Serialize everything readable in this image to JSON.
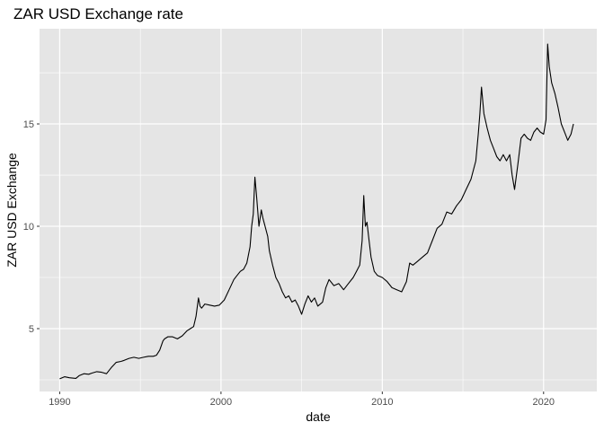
{
  "chart_data": {
    "type": "line",
    "title": "ZAR USD Exchange rate",
    "xlabel": "date",
    "ylabel": "ZAR USD Exchange",
    "xlim": [
      1988.75,
      2023.3
    ],
    "ylim": [
      1.93,
      19.65
    ],
    "x_ticks": [
      {
        "value": 1990,
        "label": "1990"
      },
      {
        "value": 2000,
        "label": "2000"
      },
      {
        "value": 2010,
        "label": "2010"
      },
      {
        "value": 2020,
        "label": "2020"
      }
    ],
    "x_minor_ticks": [
      1995,
      2005,
      2015
    ],
    "y_ticks": [
      {
        "value": 5,
        "label": "5"
      },
      {
        "value": 10,
        "label": "10"
      },
      {
        "value": 15,
        "label": "15"
      }
    ],
    "y_minor_ticks": [
      2.5,
      7.5,
      12.5,
      17.5
    ],
    "grid": true,
    "legend": "none",
    "colors": {
      "panel": "#e5e5e5",
      "grid": "#ffffff",
      "line": "#000000",
      "tick_label": "#4d4d4d"
    },
    "series": [
      {
        "x": [
          1990.0,
          1990.3,
          1990.6,
          1991.0,
          1991.2,
          1991.5,
          1991.8,
          1992.0,
          1992.3,
          1992.6,
          1992.9,
          1993.2,
          1993.5,
          1993.8,
          1994.0,
          1994.3,
          1994.6,
          1994.9,
          1995.2,
          1995.5,
          1995.8,
          1996.0,
          1996.2,
          1996.4,
          1996.5,
          1996.7,
          1997.0,
          1997.3,
          1997.6,
          1997.9,
          1998.1,
          1998.3,
          1998.45,
          1998.6,
          1998.7,
          1998.8,
          1999.0,
          1999.3,
          1999.6,
          1999.9,
          2000.2,
          2000.5,
          2000.8,
          2001.0,
          2001.2,
          2001.4,
          2001.6,
          2001.8,
          2001.9,
          2002.0,
          2002.1,
          2002.2,
          2002.35,
          2002.5,
          2002.6,
          2002.7,
          2002.9,
          2003.0,
          2003.2,
          2003.4,
          2003.6,
          2003.8,
          2004.0,
          2004.2,
          2004.4,
          2004.6,
          2004.8,
          2005.0,
          2005.2,
          2005.4,
          2005.6,
          2005.8,
          2006.0,
          2006.3,
          2006.5,
          2006.7,
          2007.0,
          2007.3,
          2007.6,
          2007.9,
          2008.2,
          2008.4,
          2008.6,
          2008.75,
          2008.85,
          2008.95,
          2009.05,
          2009.15,
          2009.3,
          2009.5,
          2009.7,
          2010.0,
          2010.3,
          2010.6,
          2010.9,
          2011.2,
          2011.5,
          2011.7,
          2011.9,
          2012.2,
          2012.5,
          2012.8,
          2013.1,
          2013.4,
          2013.7,
          2014.0,
          2014.3,
          2014.6,
          2014.9,
          2015.2,
          2015.5,
          2015.8,
          2015.95,
          2016.05,
          2016.15,
          2016.3,
          2016.5,
          2016.7,
          2016.9,
          2017.1,
          2017.3,
          2017.5,
          2017.7,
          2017.9,
          2018.05,
          2018.2,
          2018.4,
          2018.6,
          2018.8,
          2019.0,
          2019.2,
          2019.4,
          2019.6,
          2019.8,
          2020.0,
          2020.15,
          2020.25,
          2020.35,
          2020.5,
          2020.7,
          2020.9,
          2021.1,
          2021.3,
          2021.5,
          2021.7,
          2021.85
        ],
        "values": [
          2.55,
          2.65,
          2.6,
          2.57,
          2.7,
          2.8,
          2.77,
          2.83,
          2.9,
          2.87,
          2.8,
          3.1,
          3.35,
          3.4,
          3.45,
          3.55,
          3.6,
          3.55,
          3.6,
          3.65,
          3.65,
          3.7,
          3.95,
          4.4,
          4.5,
          4.6,
          4.6,
          4.5,
          4.65,
          4.9,
          5.0,
          5.1,
          5.6,
          6.5,
          6.1,
          6.0,
          6.2,
          6.15,
          6.1,
          6.15,
          6.4,
          6.9,
          7.4,
          7.6,
          7.8,
          7.9,
          8.2,
          9.0,
          10.0,
          10.6,
          12.4,
          11.5,
          10.0,
          10.8,
          10.4,
          10.1,
          9.5,
          8.8,
          8.1,
          7.5,
          7.2,
          6.8,
          6.5,
          6.6,
          6.3,
          6.4,
          6.1,
          5.7,
          6.2,
          6.6,
          6.3,
          6.5,
          6.1,
          6.3,
          7.0,
          7.4,
          7.1,
          7.2,
          6.9,
          7.2,
          7.5,
          7.8,
          8.1,
          9.3,
          11.5,
          10.0,
          10.2,
          9.5,
          8.5,
          7.8,
          7.6,
          7.5,
          7.3,
          7.0,
          6.9,
          6.8,
          7.3,
          8.2,
          8.1,
          8.3,
          8.5,
          8.7,
          9.3,
          9.9,
          10.1,
          10.7,
          10.6,
          11.0,
          11.3,
          11.8,
          12.3,
          13.2,
          14.5,
          15.5,
          16.8,
          15.5,
          14.8,
          14.2,
          13.8,
          13.4,
          13.2,
          13.5,
          13.2,
          13.5,
          12.5,
          11.8,
          13.0,
          14.3,
          14.5,
          14.3,
          14.2,
          14.6,
          14.8,
          14.6,
          14.5,
          15.2,
          18.9,
          17.8,
          17.0,
          16.5,
          15.8,
          15.0,
          14.6,
          14.2,
          14.5,
          15.0
        ]
      }
    ]
  }
}
